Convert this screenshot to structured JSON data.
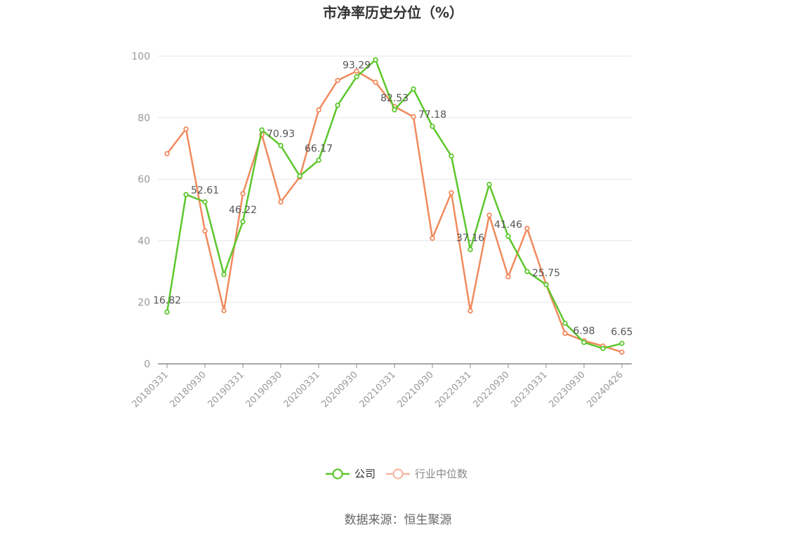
{
  "chart_data": {
    "type": "line",
    "title": "市净率历史分位（%）",
    "source": "数据来源：恒生聚源",
    "ylim": [
      0,
      100
    ],
    "yticks": [
      0,
      20,
      40,
      60,
      80,
      100
    ],
    "x": [
      "20180331",
      "20180630",
      "20180930",
      "20181231",
      "20190331",
      "20190630",
      "20190930",
      "20191231",
      "20200331",
      "20200630",
      "20200930",
      "20201231",
      "20210331",
      "20210630",
      "20210930",
      "20211231",
      "20220331",
      "20220630",
      "20220930",
      "20221231",
      "20230331",
      "20230630",
      "20230930",
      "20231231",
      "20240426"
    ],
    "xtick_labels": [
      "20180331",
      "20180930",
      "20190331",
      "20190930",
      "20200331",
      "20200930",
      "20210331",
      "20210930",
      "20220331",
      "20220930",
      "20230331",
      "20230930",
      "20240426"
    ],
    "series": [
      {
        "name": "公司",
        "color": "#5cc72c",
        "values": [
          16.82,
          55.0,
          52.61,
          29.0,
          46.22,
          76.0,
          70.93,
          61.0,
          66.17,
          84.0,
          93.29,
          98.8,
          82.53,
          89.3,
          77.18,
          67.5,
          37.16,
          58.3,
          41.46,
          30.0,
          25.75,
          13.2,
          6.98,
          5.0,
          6.65
        ],
        "labels": {
          "0": "16.82",
          "2": "52.61",
          "4": "46.22",
          "6": "70.93",
          "8": "66.17",
          "10": "93.29",
          "12": "82.53",
          "14": "77.18",
          "16": "37.16",
          "18": "41.46",
          "20": "25.75",
          "22": "6.98",
          "24": "6.65"
        }
      },
      {
        "name": "行业中位数",
        "color": "#f08a5d",
        "legend_color": "#f6b8a0",
        "values": [
          68.3,
          76.3,
          43.2,
          17.3,
          55.3,
          74.5,
          52.6,
          60.7,
          82.5,
          92.1,
          95.1,
          91.5,
          83.6,
          80.3,
          40.8,
          55.6,
          17.2,
          48.3,
          28.3,
          44.0,
          25.8,
          9.9,
          7.5,
          5.8,
          3.8
        ]
      }
    ],
    "grid": true,
    "legend_position": "bottom"
  }
}
